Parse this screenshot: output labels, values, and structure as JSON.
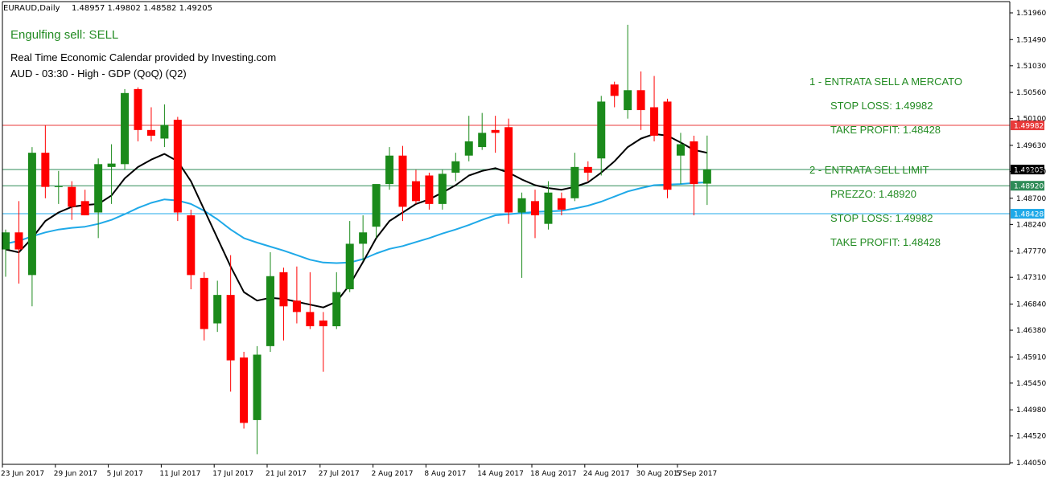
{
  "header": {
    "symbol": "EURAUD,Daily",
    "ohlc": "1.48957 1.49802 1.48582 1.49205"
  },
  "overlay": {
    "signal": "Engulfing sell: SELL",
    "calendar_line1": "Real Time Economic Calendar provided by Investing.com",
    "calendar_line2": "AUD - 03:30 - High - GDP (QoQ) (Q2)",
    "trade1_title": "1 - ENTRATA SELL A MERCATO",
    "trade1_sl": "STOP LOSS: 1.49982",
    "trade1_tp": "TAKE PROFIT: 1.48428",
    "trade2_title": "2 - ENTRATA SELL LIMIT",
    "trade2_price": "PREZZO: 1.48920",
    "trade2_sl": "STOP LOSS: 1.49982",
    "trade2_tp": "TAKE PROFIT: 1.48428"
  },
  "colors": {
    "bull": "#1b8a1b",
    "bear": "#ff0000",
    "ma_fast": "#000000",
    "ma_slow": "#1fa9e8",
    "overlay_text": "#228b22",
    "sl_line": "#e83a3a",
    "tp_line": "#1fa9e8",
    "entry_line": "#2e8b57",
    "current_tag": "#000000"
  },
  "chart_data": {
    "type": "candlestick",
    "symbol": "EURAUD",
    "timeframe": "Daily",
    "y_ticks": [
      "1.51960",
      "1.51490",
      "1.51030",
      "1.50560",
      "1.50100",
      "1.49630",
      "1.49170",
      "1.48700",
      "1.48240",
      "1.47770",
      "1.47310",
      "1.46840",
      "1.46380",
      "1.45910",
      "1.45450",
      "1.44980",
      "1.44520",
      "1.44050"
    ],
    "ylim": [
      1.44,
      1.52
    ],
    "x_ticks": [
      {
        "label": "23 Jun 2017",
        "index": 0
      },
      {
        "label": "29 Jun 2017",
        "index": 4
      },
      {
        "label": "5 Jul 2017",
        "index": 8
      },
      {
        "label": "11 Jul 2017",
        "index": 12
      },
      {
        "label": "17 Jul 2017",
        "index": 16
      },
      {
        "label": "21 Jul 2017",
        "index": 20
      },
      {
        "label": "27 Jul 2017",
        "index": 24
      },
      {
        "label": "2 Aug 2017",
        "index": 28
      },
      {
        "label": "8 Aug 2017",
        "index": 32
      },
      {
        "label": "14 Aug 2017",
        "index": 36
      },
      {
        "label": "18 Aug 2017",
        "index": 40
      },
      {
        "label": "24 Aug 2017",
        "index": 44
      },
      {
        "label": "30 Aug 2017",
        "index": 48
      },
      {
        "label": "5 Sep 2017",
        "index": 51
      }
    ],
    "candles": [
      {
        "o": 1.478,
        "h": 1.4815,
        "l": 1.4732,
        "c": 1.481
      },
      {
        "o": 1.481,
        "h": 1.4865,
        "l": 1.472,
        "c": 1.478
      },
      {
        "o": 1.4735,
        "h": 1.496,
        "l": 1.468,
        "c": 1.495
      },
      {
        "o": 1.495,
        "h": 1.4998,
        "l": 1.487,
        "c": 1.489
      },
      {
        "o": 1.489,
        "h": 1.4918,
        "l": 1.486,
        "c": 1.4891
      },
      {
        "o": 1.489,
        "h": 1.49,
        "l": 1.4832,
        "c": 1.4855
      },
      {
        "o": 1.4865,
        "h": 1.4885,
        "l": 1.484,
        "c": 1.484
      },
      {
        "o": 1.4845,
        "h": 1.494,
        "l": 1.48,
        "c": 1.493
      },
      {
        "o": 1.4925,
        "h": 1.4965,
        "l": 1.486,
        "c": 1.4931
      },
      {
        "o": 1.493,
        "h": 1.5062,
        "l": 1.492,
        "c": 1.5055
      },
      {
        "o": 1.5062,
        "h": 1.5065,
        "l": 1.497,
        "c": 1.499
      },
      {
        "o": 1.499,
        "h": 1.503,
        "l": 1.497,
        "c": 1.498
      },
      {
        "o": 1.4975,
        "h": 1.5035,
        "l": 1.496,
        "c": 1.4999
      },
      {
        "o": 1.5008,
        "h": 1.5013,
        "l": 1.483,
        "c": 1.4845
      },
      {
        "o": 1.484,
        "h": 1.485,
        "l": 1.471,
        "c": 1.4735
      },
      {
        "o": 1.473,
        "h": 1.474,
        "l": 1.462,
        "c": 1.464
      },
      {
        "o": 1.465,
        "h": 1.4725,
        "l": 1.4635,
        "c": 1.47
      },
      {
        "o": 1.47,
        "h": 1.477,
        "l": 1.453,
        "c": 1.4585
      },
      {
        "o": 1.459,
        "h": 1.46,
        "l": 1.4465,
        "c": 1.4475
      },
      {
        "o": 1.448,
        "h": 1.461,
        "l": 1.442,
        "c": 1.4595
      },
      {
        "o": 1.461,
        "h": 1.4775,
        "l": 1.46,
        "c": 1.4733
      },
      {
        "o": 1.474,
        "h": 1.4748,
        "l": 1.462,
        "c": 1.468
      },
      {
        "o": 1.469,
        "h": 1.475,
        "l": 1.465,
        "c": 1.467
      },
      {
        "o": 1.467,
        "h": 1.474,
        "l": 1.464,
        "c": 1.4645
      },
      {
        "o": 1.4655,
        "h": 1.467,
        "l": 1.4565,
        "c": 1.4645
      },
      {
        "o": 1.4645,
        "h": 1.474,
        "l": 1.464,
        "c": 1.4705
      },
      {
        "o": 1.471,
        "h": 1.483,
        "l": 1.4705,
        "c": 1.479
      },
      {
        "o": 1.479,
        "h": 1.484,
        "l": 1.476,
        "c": 1.481
      },
      {
        "o": 1.482,
        "h": 1.489,
        "l": 1.48,
        "c": 1.4895
      },
      {
        "o": 1.4895,
        "h": 1.496,
        "l": 1.4885,
        "c": 1.4945
      },
      {
        "o": 1.4945,
        "h": 1.4962,
        "l": 1.483,
        "c": 1.4855
      },
      {
        "o": 1.49,
        "h": 1.492,
        "l": 1.486,
        "c": 1.4865
      },
      {
        "o": 1.491,
        "h": 1.4915,
        "l": 1.485,
        "c": 1.486
      },
      {
        "o": 1.486,
        "h": 1.492,
        "l": 1.485,
        "c": 1.4913
      },
      {
        "o": 1.4915,
        "h": 1.495,
        "l": 1.49,
        "c": 1.4935
      },
      {
        "o": 1.4945,
        "h": 1.5015,
        "l": 1.4935,
        "c": 1.497
      },
      {
        "o": 1.496,
        "h": 1.502,
        "l": 1.4955,
        "c": 1.4985
      },
      {
        "o": 1.499,
        "h": 1.5015,
        "l": 1.495,
        "c": 1.4985
      },
      {
        "o": 1.4995,
        "h": 1.501,
        "l": 1.4825,
        "c": 1.4845
      },
      {
        "o": 1.4845,
        "h": 1.488,
        "l": 1.473,
        "c": 1.487
      },
      {
        "o": 1.4865,
        "h": 1.4885,
        "l": 1.48,
        "c": 1.484
      },
      {
        "o": 1.4825,
        "h": 1.49,
        "l": 1.4815,
        "c": 1.488
      },
      {
        "o": 1.487,
        "h": 1.488,
        "l": 1.484,
        "c": 1.485
      },
      {
        "o": 1.487,
        "h": 1.495,
        "l": 1.4865,
        "c": 1.4925
      },
      {
        "o": 1.4925,
        "h": 1.4935,
        "l": 1.49,
        "c": 1.4915
      },
      {
        "o": 1.494,
        "h": 1.505,
        "l": 1.491,
        "c": 1.504
      },
      {
        "o": 1.507,
        "h": 1.5075,
        "l": 1.503,
        "c": 1.505
      },
      {
        "o": 1.5025,
        "h": 1.5175,
        "l": 1.501,
        "c": 1.506
      },
      {
        "o": 1.506,
        "h": 1.5093,
        "l": 1.499,
        "c": 1.5025
      },
      {
        "o": 1.503,
        "h": 1.5085,
        "l": 1.497,
        "c": 1.498
      },
      {
        "o": 1.504,
        "h": 1.5045,
        "l": 1.487,
        "c": 1.4885
      },
      {
        "o": 1.4945,
        "h": 1.4985,
        "l": 1.4895,
        "c": 1.4965
      },
      {
        "o": 1.497,
        "h": 1.498,
        "l": 1.484,
        "c": 1.4895
      },
      {
        "o": 1.48957,
        "h": 1.49802,
        "l": 1.48582,
        "c": 1.49205
      }
    ],
    "ma_fast": [
      1.478,
      1.4775,
      1.48,
      1.483,
      1.4845,
      1.4855,
      1.4858,
      1.486,
      1.4875,
      1.4905,
      1.4925,
      1.4938,
      1.4948,
      1.4935,
      1.49,
      1.485,
      1.48,
      1.475,
      1.4705,
      1.469,
      1.4695,
      1.4693,
      1.4688,
      1.4683,
      1.4678,
      1.4688,
      1.4718,
      1.4758,
      1.48,
      1.483,
      1.4845,
      1.486,
      1.4868,
      1.488,
      1.4893,
      1.491,
      1.4918,
      1.4923,
      1.4915,
      1.4903,
      1.4893,
      1.4888,
      1.4885,
      1.489,
      1.4898,
      1.4915,
      1.4935,
      1.496,
      1.4975,
      1.4983,
      1.498,
      1.4968,
      1.4955,
      1.495
    ],
    "ma_slow": [
      1.479,
      1.4795,
      1.4803,
      1.481,
      1.4815,
      1.4818,
      1.482,
      1.4825,
      1.4832,
      1.4842,
      1.4853,
      1.4862,
      1.4868,
      1.4866,
      1.486,
      1.4848,
      1.4833,
      1.4815,
      1.48,
      1.4792,
      1.4785,
      1.4778,
      1.477,
      1.4762,
      1.4757,
      1.4756,
      1.4757,
      1.4763,
      1.4773,
      1.4781,
      1.4786,
      1.4793,
      1.48,
      1.4808,
      1.4815,
      1.4823,
      1.4832,
      1.484,
      1.4842,
      1.4844,
      1.4846,
      1.4847,
      1.4848,
      1.4852,
      1.4857,
      1.4864,
      1.4873,
      1.4882,
      1.4888,
      1.4893,
      1.4894,
      1.4895,
      1.4897,
      1.4898
    ],
    "levels": [
      {
        "name": "stop-loss",
        "value": "1.49982",
        "color": "#e83a3a",
        "tag_bg": "#e83a3a"
      },
      {
        "name": "current-price",
        "value": "1.49205",
        "color": "#2e8b57",
        "tag_bg": "#000000"
      },
      {
        "name": "sell-limit-entry",
        "value": "1.48920",
        "color": "#2e8b57",
        "tag_bg": "#2e8b57"
      },
      {
        "name": "take-profit",
        "value": "1.48428",
        "color": "#1fa9e8",
        "tag_bg": "#1fa9e8"
      }
    ]
  }
}
